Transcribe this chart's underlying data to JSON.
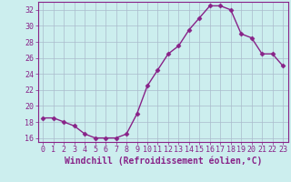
{
  "x": [
    0,
    1,
    2,
    3,
    4,
    5,
    6,
    7,
    8,
    9,
    10,
    11,
    12,
    13,
    14,
    15,
    16,
    17,
    18,
    19,
    20,
    21,
    22,
    23
  ],
  "y": [
    18.5,
    18.5,
    18.0,
    17.5,
    16.5,
    16.0,
    16.0,
    16.0,
    16.5,
    19.0,
    22.5,
    24.5,
    26.5,
    27.5,
    29.5,
    31.0,
    32.5,
    32.5,
    32.0,
    29.0,
    28.5,
    26.5,
    26.5,
    25.0
  ],
  "line_color": "#882288",
  "marker": "D",
  "marker_size": 2.5,
  "bg_color": "#cceeee",
  "grid_color": "#aabbcc",
  "ylim": [
    15.5,
    33
  ],
  "yticks": [
    16,
    18,
    20,
    22,
    24,
    26,
    28,
    30,
    32
  ],
  "xlabel": "Windchill (Refroidissement éolien,°C)",
  "xlabel_fontsize": 7,
  "tick_fontsize": 6,
  "line_width": 1.0,
  "spine_color": "#882288"
}
